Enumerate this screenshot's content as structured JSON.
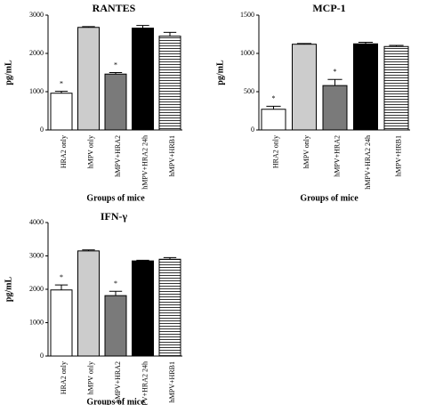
{
  "figure": {
    "colors": {
      "axis": "#000000",
      "hatch": "#000000"
    }
  },
  "chart_data": [
    {
      "type": "bar",
      "title": "RANTES",
      "ylabel": "pg/mL",
      "xlabel": "Groups of mice",
      "ylim": [
        0,
        3000
      ],
      "yticks": [
        "0",
        "1000",
        "2000",
        "3000"
      ],
      "categories": [
        "HRA2 only",
        "hMPV only",
        "hMPV+HRA2",
        "hMPV+HRA2 24h",
        "hMPV+HRB1"
      ],
      "values": [
        960,
        2680,
        1460,
        2660,
        2450
      ],
      "errors": [
        50,
        20,
        40,
        70,
        100
      ],
      "significance": [
        "*",
        "",
        "*",
        "",
        ""
      ],
      "fills": [
        "white",
        "#cccccc",
        "#7a7a7a",
        "#000000",
        "hatch"
      ]
    },
    {
      "type": "bar",
      "title": "MCP-1",
      "ylabel": "pg/mL",
      "xlabel": "Groups of mice",
      "ylim": [
        0,
        1500
      ],
      "yticks": [
        "0",
        "500",
        "1000",
        "1500"
      ],
      "categories": [
        "HRA2 only",
        "hMPV only",
        "hMPV+HRA2",
        "hMPV+HRA2 24h",
        "hMPV+HRB1"
      ],
      "values": [
        270,
        1120,
        580,
        1125,
        1090
      ],
      "errors": [
        40,
        10,
        80,
        20,
        15
      ],
      "significance": [
        "*",
        "",
        "*",
        "",
        ""
      ],
      "fills": [
        "white",
        "#cccccc",
        "#7a7a7a",
        "#000000",
        "hatch"
      ]
    },
    {
      "type": "bar",
      "title": "IFN-γ",
      "ylabel": "pg/mL",
      "xlabel": "Groups of mice",
      "ylim": [
        0,
        4000
      ],
      "yticks": [
        "0",
        "1000",
        "2000",
        "3000",
        "4000"
      ],
      "categories": [
        "HRA2 only",
        "hMPV only",
        "hMPV+HRA2",
        "hMPV+HRA2 24h",
        "hMPV+HRB1"
      ],
      "values": [
        1980,
        3150,
        1810,
        2850,
        2900
      ],
      "errors": [
        150,
        30,
        130,
        20,
        50
      ],
      "significance": [
        "*",
        "",
        "*",
        "",
        ""
      ],
      "fills": [
        "white",
        "#cccccc",
        "#7a7a7a",
        "#000000",
        "hatch"
      ]
    }
  ]
}
